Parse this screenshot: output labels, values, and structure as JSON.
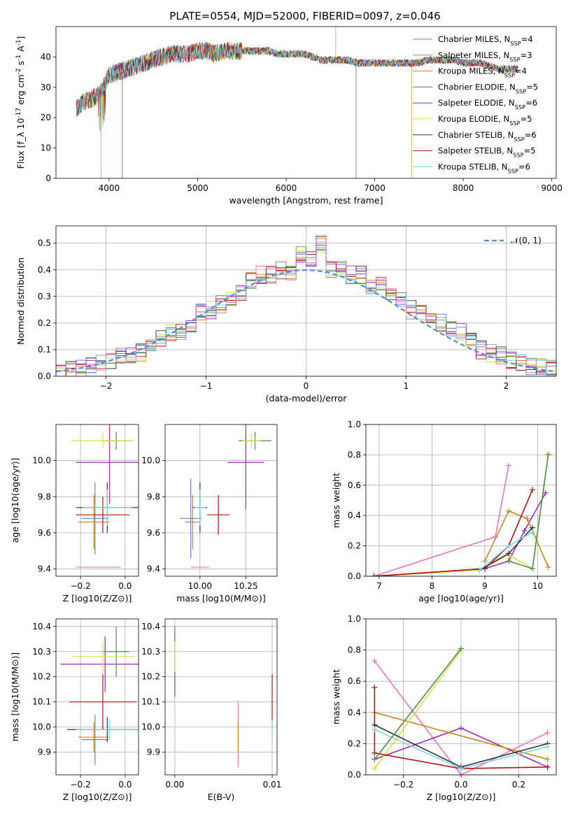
{
  "figure": {
    "title": "PLATE=0554, MJD=52000, FIBERID=0097, z=0.046"
  },
  "chart_data": [
    {
      "type": "line",
      "xlabel": "wavelength [Angstrom, rest frame]",
      "ylabel": "Flux [f_λ 10^-17 erg cm^-2 s^-1 A^-1]",
      "xlim": [
        3400,
        9050
      ],
      "ylim": [
        0,
        50
      ],
      "xticks": [
        4000,
        5000,
        6000,
        7000,
        8000,
        9000
      ],
      "yticks": [
        0,
        10,
        20,
        30,
        40
      ],
      "legend_position": "top-right",
      "series": [
        {
          "name": "Chabrier MILES, N_SSP=4",
          "color": "#6a7fd6"
        },
        {
          "name": "Salpeter MILES, N_SSP=3",
          "color": "#8e8e8e"
        },
        {
          "name": "Kroupa MILES, N_SSP=4",
          "color": "#c58a1e"
        },
        {
          "name": "Chabrier ELODIE, N_SSP=5",
          "color": "#4f8f4f"
        },
        {
          "name": "Salpeter ELODIE, N_SSP=6",
          "color": "#9a2eb8"
        },
        {
          "name": "Kroupa ELODIE, N_SSP=5",
          "color": "#d7e04b"
        },
        {
          "name": "Chabrier STELIB, N_SSP=6",
          "color": "#333333"
        },
        {
          "name": "Salpeter STELIB, N_SSP=5",
          "color": "#b31212"
        },
        {
          "name": "Kroupa STELIB, N_SSP=6",
          "color": "#7fd6e3"
        }
      ],
      "spectrum": {
        "x": [
          3600,
          3700,
          3800,
          3900,
          4000,
          4100,
          4200,
          4300,
          4400,
          4500,
          4600,
          4700,
          4800,
          4900,
          5000,
          5100,
          5200,
          5300,
          5400,
          5500,
          5600,
          5700,
          5800,
          5900,
          6000,
          6100,
          6200,
          6300,
          6400,
          6500,
          6600,
          6700,
          6800,
          6900,
          7000,
          7100,
          7200,
          7300,
          7400,
          7500,
          7600,
          7700,
          7800,
          7900,
          8000,
          8100,
          8200,
          8300,
          8400,
          8500,
          8600
        ],
        "y": [
          22,
          25,
          26,
          28,
          34,
          35,
          36,
          37,
          38,
          39,
          40,
          41,
          41,
          41,
          42,
          42,
          41,
          42,
          42,
          42,
          42,
          42,
          42,
          41,
          41,
          41,
          41,
          40,
          39,
          39,
          39,
          39,
          38,
          38,
          38,
          38,
          38,
          38,
          38,
          38,
          39,
          39,
          39,
          39,
          38,
          38,
          38,
          37,
          36,
          36,
          36
        ]
      }
    },
    {
      "type": "line",
      "xlabel": "(data-model)/error",
      "ylabel": "Normed distribution",
      "xlim": [
        -2.5,
        2.5
      ],
      "ylim": [
        0,
        0.565
      ],
      "xticks": [
        -2,
        -1,
        0,
        1,
        2
      ],
      "yticks": [
        0.0,
        0.1,
        0.2,
        0.3,
        0.4,
        0.5
      ],
      "grid": true,
      "legend_position": "top-right",
      "reference": {
        "name": "𝒩(0, 1)",
        "color": "#5b8bd0",
        "style": "dashed"
      },
      "histogram": {
        "bin_width": 0.1,
        "x": [
          -2.45,
          -2.35,
          -2.25,
          -2.15,
          -2.05,
          -1.95,
          -1.85,
          -1.75,
          -1.65,
          -1.55,
          -1.45,
          -1.35,
          -1.25,
          -1.15,
          -1.05,
          -0.95,
          -0.85,
          -0.75,
          -0.65,
          -0.55,
          -0.45,
          -0.35,
          -0.25,
          -0.15,
          -0.05,
          0.05,
          0.15,
          0.25,
          0.35,
          0.45,
          0.55,
          0.65,
          0.75,
          0.85,
          0.95,
          1.05,
          1.15,
          1.25,
          1.35,
          1.45,
          1.55,
          1.65,
          1.75,
          1.85,
          1.95,
          2.05,
          2.15,
          2.25,
          2.35,
          2.45
        ],
        "y": [
          0.02,
          0.025,
          0.03,
          0.04,
          0.05,
          0.055,
          0.07,
          0.08,
          0.09,
          0.12,
          0.14,
          0.16,
          0.17,
          0.2,
          0.24,
          0.25,
          0.27,
          0.29,
          0.32,
          0.36,
          0.38,
          0.38,
          0.4,
          0.38,
          0.46,
          0.44,
          0.5,
          0.4,
          0.4,
          0.38,
          0.38,
          0.34,
          0.34,
          0.32,
          0.28,
          0.25,
          0.24,
          0.22,
          0.2,
          0.18,
          0.17,
          0.13,
          0.1,
          0.085,
          0.08,
          0.06,
          0.05,
          0.04,
          0.035,
          0.03
        ]
      }
    },
    {
      "type": "scatter",
      "xlabel": "Z [log10(Z/Z⊙)]",
      "ylabel": "age  [log10(age/yr)]",
      "xlim": [
        -0.31,
        0.06
      ],
      "ylim": [
        9.36,
        10.2
      ],
      "xticks": [
        -0.2,
        0.0
      ],
      "xticklabels": [
        "−0.2",
        "0.0"
      ],
      "yticks": [
        9.4,
        9.6,
        9.8,
        10.0
      ],
      "grid": true,
      "errorbars": [
        {
          "color": "#6a7fd6",
          "x": -0.135,
          "y": 9.68,
          "xerr": 0.06,
          "yerr": 0.2
        },
        {
          "color": "#c58a1e",
          "x": -0.14,
          "y": 9.66,
          "xerr": 0.07,
          "yerr": 0.15
        },
        {
          "color": "#e377c2",
          "x": -0.12,
          "y": 9.41,
          "xerr": 0.1,
          "yerr": 0.0
        },
        {
          "color": "#b31212",
          "x": -0.1,
          "y": 9.7,
          "xerr": 0.12,
          "yerr": 0.1
        },
        {
          "color": "#333333",
          "x": -0.08,
          "y": 9.74,
          "xerr": 0.14,
          "yerr": 0.14
        },
        {
          "color": "#7fd6e3",
          "x": -0.08,
          "y": 9.74,
          "xerr": 0.11,
          "yerr": 0.1
        },
        {
          "color": "#9a2eb8",
          "x": -0.07,
          "y": 9.99,
          "xerr": 0.15,
          "yerr": 0.23
        },
        {
          "color": "#4f8f4f",
          "x": -0.04,
          "y": 10.11,
          "xerr": 0.06,
          "yerr": 0.05
        },
        {
          "color": "#d7e04b",
          "x": -0.1,
          "y": 10.11,
          "xerr": 0.14,
          "yerr": 0.04
        }
      ]
    },
    {
      "type": "scatter",
      "xlabel": "mass [log10(M/M⊙)]",
      "ylabel": "",
      "xlim": [
        9.81,
        10.42
      ],
      "ylim": [
        9.36,
        10.2
      ],
      "xticks": [
        10.0,
        10.25
      ],
      "xticklabels": [
        "10.00",
        "10.25"
      ],
      "yticks": [
        9.4,
        9.6,
        9.8,
        10.0
      ],
      "grid": true,
      "errorbars": [
        {
          "color": "#6a7fd6",
          "x": 9.95,
          "y": 9.68,
          "xerr": 0.06,
          "yerr": 0.22
        },
        {
          "color": "#c58a1e",
          "x": 9.96,
          "y": 9.66,
          "xerr": 0.04,
          "yerr": 0.15
        },
        {
          "color": "#e377c2",
          "x": 10.0,
          "y": 9.41,
          "xerr": 0.05,
          "yerr": 0.0
        },
        {
          "color": "#b31212",
          "x": 10.1,
          "y": 9.7,
          "xerr": 0.06,
          "yerr": 0.11
        },
        {
          "color": "#333333",
          "x": 10.0,
          "y": 9.74,
          "xerr": 0.04,
          "yerr": 0.14
        },
        {
          "color": "#7fd6e3",
          "x": 10.0,
          "y": 9.74,
          "xerr": 0.03,
          "yerr": 0.1
        },
        {
          "color": "#9a2eb8",
          "x": 10.25,
          "y": 9.99,
          "xerr": 0.1,
          "yerr": 0.26
        },
        {
          "color": "#4f8f4f",
          "x": 10.3,
          "y": 10.11,
          "xerr": 0.09,
          "yerr": 0.05
        },
        {
          "color": "#d7e04b",
          "x": 10.28,
          "y": 10.11,
          "xerr": 0.05,
          "yerr": 0.04
        }
      ]
    },
    {
      "type": "line",
      "xlabel": "age  [log10(age/yr)]",
      "ylabel": "mass weight",
      "xlim": [
        6.75,
        10.35
      ],
      "ylim": [
        0,
        1.0
      ],
      "xticks": [
        7,
        8,
        9,
        10
      ],
      "yticks": [
        0.0,
        0.2,
        0.4,
        0.6,
        0.8,
        1.0
      ],
      "grid": true,
      "series": [
        {
          "color": "#e377c2",
          "x": [
            6.9,
            9.2,
            9.45
          ],
          "y": [
            0.0,
            0.26,
            0.73
          ]
        },
        {
          "color": "#9a2eb8",
          "x": [
            6.9,
            9.0,
            9.45,
            9.75,
            10.15
          ],
          "y": [
            0.0,
            0.05,
            0.1,
            0.3,
            0.55
          ]
        },
        {
          "color": "#c58a1e",
          "x": [
            9.0,
            9.45,
            9.8,
            10.2
          ],
          "y": [
            0.1,
            0.43,
            0.38,
            0.06
          ]
        },
        {
          "color": "#d7e04b",
          "x": [
            6.9,
            8.9,
            9.45,
            9.9,
            10.2
          ],
          "y": [
            0.0,
            0.04,
            0.14,
            0.05,
            0.81
          ]
        },
        {
          "color": "#b31212",
          "x": [
            6.9,
            9.0,
            9.45,
            9.9
          ],
          "y": [
            0.0,
            0.05,
            0.2,
            0.57
          ]
        },
        {
          "color": "#333333",
          "x": [
            8.9,
            9.45,
            9.9
          ],
          "y": [
            0.04,
            0.15,
            0.32
          ]
        },
        {
          "color": "#7fd6e3",
          "x": [
            8.9,
            9.45,
            9.9
          ],
          "y": [
            0.04,
            0.2,
            0.29
          ]
        },
        {
          "color": "#4f8f4f",
          "x": [
            9.45,
            9.9,
            10.2
          ],
          "y": [
            0.1,
            0.05,
            0.8
          ]
        }
      ]
    },
    {
      "type": "scatter",
      "xlabel": "Z [log10(Z/Z⊙)]",
      "ylabel": "mass [log10(M/M⊙)]",
      "xlim": [
        -0.31,
        0.06
      ],
      "ylim": [
        9.81,
        10.43
      ],
      "xticks": [
        -0.2,
        0.0
      ],
      "xticklabels": [
        "−0.2",
        "0.0"
      ],
      "yticks": [
        9.9,
        10.0,
        10.1,
        10.2,
        10.3,
        10.4
      ],
      "grid": true,
      "errorbars": [
        {
          "color": "#6a7fd6",
          "x": -0.135,
          "y": 9.95,
          "xerr": 0.06,
          "yerr": 0.1
        },
        {
          "color": "#c58a1e",
          "x": -0.14,
          "y": 9.96,
          "xerr": 0.07,
          "yerr": 0.06
        },
        {
          "color": "#b31212",
          "x": -0.1,
          "y": 10.1,
          "xerr": 0.15,
          "yerr": 0.11
        },
        {
          "color": "#333333",
          "x": -0.08,
          "y": 9.99,
          "xerr": 0.18,
          "yerr": 0.05
        },
        {
          "color": "#7fd6e3",
          "x": -0.07,
          "y": 9.99,
          "xerr": 0.15,
          "yerr": 0.04
        },
        {
          "color": "#9a2eb8",
          "x": -0.09,
          "y": 10.25,
          "xerr": 0.2,
          "yerr": 0.11
        },
        {
          "color": "#4f8f4f",
          "x": -0.04,
          "y": 10.3,
          "xerr": 0.06,
          "yerr": 0.1
        },
        {
          "color": "#d7e04b",
          "x": -0.1,
          "y": 10.28,
          "xerr": 0.14,
          "yerr": 0.06
        }
      ]
    },
    {
      "type": "scatter",
      "xlabel": "E(B-V)",
      "ylabel": "",
      "xlim": [
        -0.001,
        0.0105
      ],
      "ylim": [
        9.81,
        10.43
      ],
      "xticks": [
        0.0,
        0.01
      ],
      "xticklabels": [
        "0.00",
        "0.01"
      ],
      "yticks": [
        9.9,
        10.0,
        10.1,
        10.2,
        10.3,
        10.4
      ],
      "grid": true,
      "errorbars": [
        {
          "color": "#e377c2",
          "x": 0.0065,
          "y": 9.97,
          "xerr": 0,
          "yerr": 0.13
        },
        {
          "color": "#c58a1e",
          "x": 0.0065,
          "y": 9.96,
          "xerr": 0,
          "yerr": 0.06
        },
        {
          "color": "#b31212",
          "x": 0.01,
          "y": 10.1,
          "xerr": 0,
          "yerr": 0.11
        },
        {
          "color": "#7fd6e3",
          "x": 0.01,
          "y": 9.99,
          "xerr": 0,
          "yerr": 0.04
        },
        {
          "color": "#9a2eb8",
          "x": 0.0,
          "y": 10.25,
          "xerr": 0,
          "yerr": 0.13
        },
        {
          "color": "#4f8f4f",
          "x": 0.0,
          "y": 10.3,
          "xerr": 0,
          "yerr": 0.1
        },
        {
          "color": "#d7e04b",
          "x": 0.0,
          "y": 10.28,
          "xerr": 0,
          "yerr": 0.06
        }
      ]
    },
    {
      "type": "line",
      "xlabel": "Z [log10(Z/Z⊙)]",
      "ylabel": "mass weight",
      "xlim": [
        -0.33,
        0.33
      ],
      "ylim": [
        0,
        1.0
      ],
      "xticks": [
        -0.2,
        0.0,
        0.2
      ],
      "xticklabels": [
        "−0.2",
        "0.0",
        "0.2"
      ],
      "yticks": [
        0.0,
        0.2,
        0.4,
        0.6,
        0.8,
        1.0
      ],
      "grid": true,
      "series": [
        {
          "color": "#e377c2",
          "x": [
            -0.3,
            0.0,
            0.3
          ],
          "y": [
            0.73,
            0.0,
            0.27
          ]
        },
        {
          "color": "#9a2eb8",
          "x": [
            -0.3,
            0.0,
            0.3
          ],
          "y": [
            0.1,
            0.3,
            0.05
          ]
        },
        {
          "color": "#c58a1e",
          "x": [
            -0.3,
            0.3
          ],
          "y": [
            0.4,
            0.1
          ]
        },
        {
          "color": "#d7e04b",
          "x": [
            -0.3,
            0.0
          ],
          "y": [
            0.04,
            0.8
          ]
        },
        {
          "color": "#b31212",
          "x": [
            -0.3,
            -0.3,
            0.0,
            0.3
          ],
          "y": [
            0.56,
            0.14,
            0.04,
            0.05
          ]
        },
        {
          "color": "#333333",
          "x": [
            -0.3,
            0.0,
            0.3
          ],
          "y": [
            0.32,
            0.05,
            0.2
          ]
        },
        {
          "color": "#7fd6e3",
          "x": [
            -0.3,
            0.0,
            0.3
          ],
          "y": [
            0.29,
            0.04,
            0.18
          ]
        },
        {
          "color": "#4f8f4f",
          "x": [
            -0.3,
            0.0
          ],
          "y": [
            0.1,
            0.81
          ]
        }
      ]
    }
  ]
}
